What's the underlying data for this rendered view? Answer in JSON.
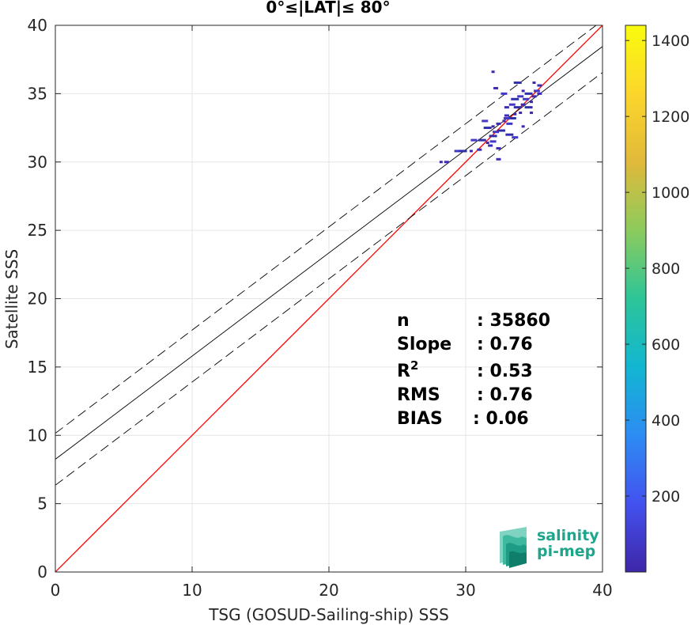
{
  "chart_data": {
    "type": "scatter",
    "title": "0°≤|LAT|≤ 80°",
    "xlabel": "TSG (GOSUD-Sailing-ship) SSS",
    "ylabel": "Satellite SSS",
    "xlim": [
      0,
      40
    ],
    "ylim": [
      0,
      40
    ],
    "xticks": [
      "0",
      "10",
      "20",
      "30",
      "40"
    ],
    "yticks": [
      "0",
      "5",
      "10",
      "15",
      "20",
      "25",
      "30",
      "35",
      "40"
    ],
    "grid": true,
    "identity_line": {
      "x": [
        0,
        40
      ],
      "y": [
        0,
        40
      ],
      "color": "#ff0000"
    },
    "regression_line": {
      "intercept": 8.25,
      "slope": 0.755,
      "color": "#000000"
    },
    "confidence_offset": 1.9,
    "density_points": [
      [
        28.2,
        30.0
      ],
      [
        28.6,
        30.0
      ],
      [
        29.4,
        30.8
      ],
      [
        29.8,
        30.8
      ],
      [
        30.4,
        30.8
      ],
      [
        31.0,
        30.9
      ],
      [
        30.6,
        31.6
      ],
      [
        31.2,
        31.6
      ],
      [
        31.6,
        31.4
      ],
      [
        31.8,
        31.2
      ],
      [
        32.0,
        31.5
      ],
      [
        31.6,
        32.5
      ],
      [
        32.0,
        32.6
      ],
      [
        32.4,
        32.8
      ],
      [
        32.2,
        32.2
      ],
      [
        32.6,
        32.3
      ],
      [
        32.8,
        33.0
      ],
      [
        33.0,
        33.4
      ],
      [
        33.2,
        32.8
      ],
      [
        33.4,
        33.2
      ],
      [
        33.6,
        33.5
      ],
      [
        33.0,
        34.0
      ],
      [
        33.4,
        34.2
      ],
      [
        33.8,
        34.0
      ],
      [
        34.0,
        33.6
      ],
      [
        34.2,
        34.2
      ],
      [
        34.4,
        34.6
      ],
      [
        34.6,
        34.0
      ],
      [
        34.8,
        34.4
      ],
      [
        35.0,
        34.8
      ],
      [
        35.2,
        35.2
      ],
      [
        34.6,
        35.0
      ],
      [
        34.2,
        35.2
      ],
      [
        35.4,
        35.6
      ],
      [
        34.0,
        34.8
      ],
      [
        33.6,
        34.6
      ],
      [
        32.0,
        36.6
      ],
      [
        32.2,
        35.4
      ],
      [
        32.8,
        35.0
      ],
      [
        33.8,
        35.8
      ],
      [
        35.0,
        35.8
      ],
      [
        32.4,
        31.0
      ],
      [
        33.6,
        31.8
      ],
      [
        33.2,
        32.0
      ],
      [
        34.2,
        32.6
      ],
      [
        32.4,
        30.2
      ],
      [
        31.4,
        33.0
      ],
      [
        32.0,
        31.9
      ],
      [
        34.8,
        33.6
      ],
      [
        35.4,
        35.0
      ],
      [
        33.0,
        33.2
      ]
    ],
    "colorbar": {
      "min": 0,
      "max": 1440,
      "ticks": [
        "200",
        "400",
        "600",
        "800",
        "1000",
        "1200",
        "1400"
      ],
      "colormap": [
        "#3e26a8",
        "#4352ef",
        "#2d8cf3",
        "#12b6d2",
        "#2dc598",
        "#8ccb5d",
        "#e1b93a",
        "#fcd62b",
        "#f9fb0e"
      ]
    },
    "stats": [
      {
        "label": "n",
        "value": ": 35860"
      },
      {
        "label": "Slope",
        "value": ": 0.76"
      },
      {
        "label": "R",
        "sup": "2",
        "value": ": 0.53"
      },
      {
        "label": "RMS",
        "value": ": 0.76"
      },
      {
        "label": "BIAS",
        "value": ": 0.06"
      }
    ]
  },
  "logo": {
    "line1": "salinity",
    "line2": "pi-mep"
  }
}
